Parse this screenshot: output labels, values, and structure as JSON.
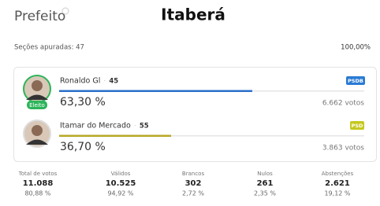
{
  "header": {
    "office": "Prefeito",
    "city": "Itaberá",
    "sections_label": "Seções apuradas: 47",
    "sections_pct": "100,00%"
  },
  "candidates": [
    {
      "name": "Ronaldo Gl",
      "number": "45",
      "party": "PSDB",
      "party_color": "#2a7bd3",
      "bar_color": "#2a6fc9",
      "percent": 63.3,
      "percent_label": "63,30 %",
      "votes": "6.662 votos",
      "status": "Eleito"
    },
    {
      "name": "Itamar do Mercado",
      "number": "55",
      "party": "PSD",
      "party_color": "#c5c81e",
      "bar_color": "#b8a826",
      "percent": 36.7,
      "percent_label": "36,70 %",
      "votes": "3.863 votos"
    }
  ],
  "bar_scale": [
    0,
    100
  ],
  "stats": [
    {
      "label": "Total de votos",
      "value": "11.088",
      "pct": "80,88 %"
    },
    {
      "label": "Válidos",
      "value": "10.525",
      "pct": "94,92 %"
    },
    {
      "label": "Brancos",
      "value": "302",
      "pct": "2,72 %"
    },
    {
      "label": "Nulos",
      "value": "261",
      "pct": "2,35 %"
    },
    {
      "label": "Abstenções",
      "value": "2.621",
      "pct": "19,12 %"
    }
  ]
}
